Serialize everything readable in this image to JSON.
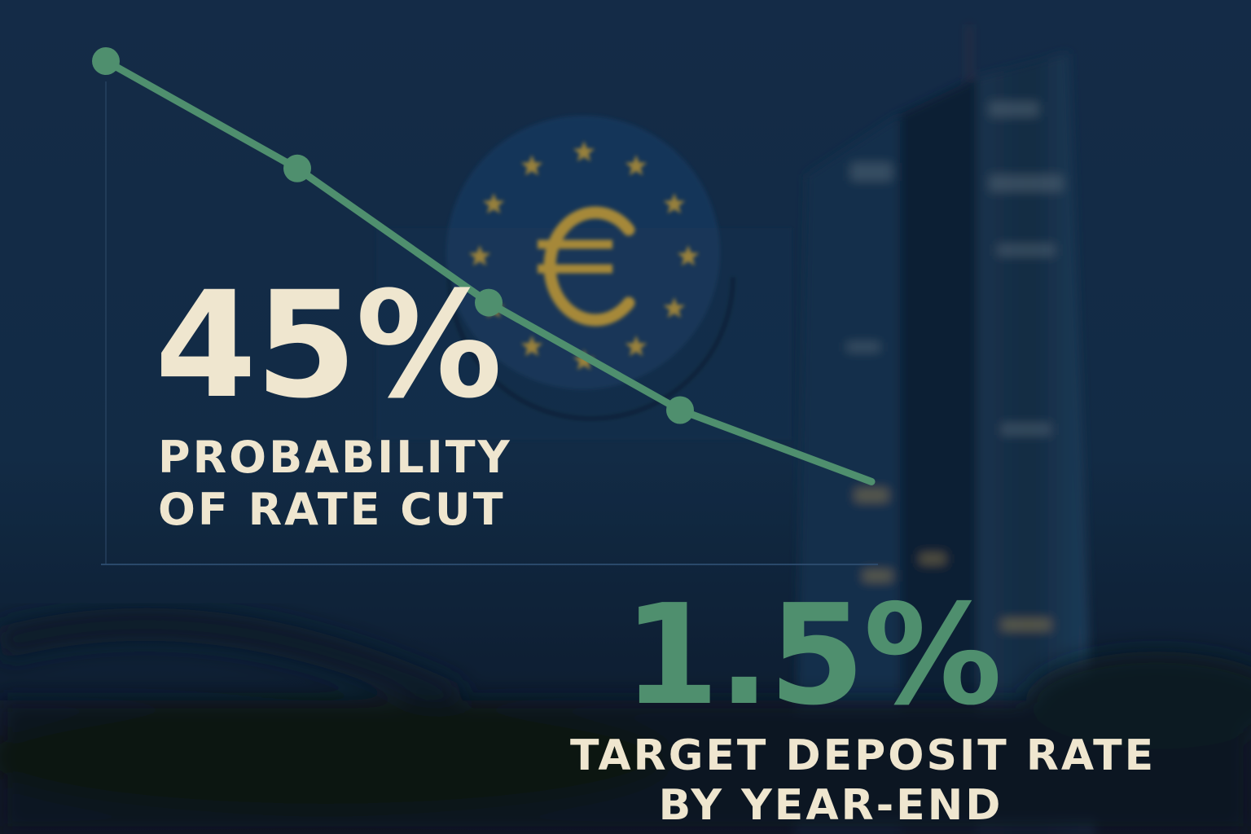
{
  "colors": {
    "background": "#0f2238",
    "accent_green": "#4f8f6e",
    "text_cream": "#efe6cf",
    "euro_gold": "#c8a23c"
  },
  "icons": [
    "euro-symbol-icon",
    "eu-stars-icon"
  ],
  "stats": {
    "primary": {
      "value": "45%",
      "label_line1": "PROBABILITY",
      "label_line2": "OF RATE CUT"
    },
    "secondary": {
      "value": "1.5%",
      "label_line1": "TARGET DEPOSIT RATE",
      "label_line2": "BY YEAR-END"
    }
  },
  "chart_data": {
    "type": "line",
    "title": "",
    "xlabel": "",
    "ylabel": "",
    "grid": false,
    "axis_tick_labels": false,
    "x": [
      1,
      2,
      3,
      4,
      5
    ],
    "series": [
      {
        "values": [
          100,
          76,
          46,
          22,
          6
        ],
        "markers": [
          true,
          true,
          true,
          true,
          false
        ],
        "color": "#4f8f6e"
      }
    ],
    "xlim": [
      1,
      5
    ],
    "ylim": [
      -12.5,
      100
    ]
  }
}
